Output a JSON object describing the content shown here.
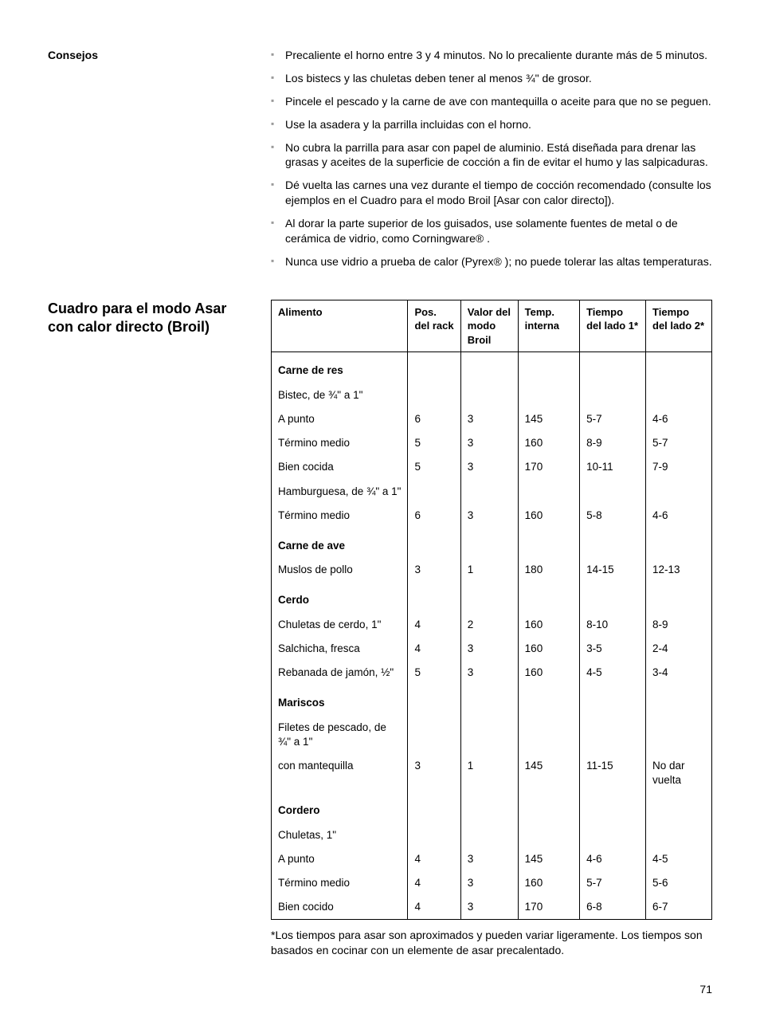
{
  "tips": {
    "label": "Consejos",
    "items": [
      "Precaliente el horno entre 3 y 4 minutos. No lo precaliente durante más de 5 minutos.",
      "Los bistecs y las chuletas deben tener al menos ¾\" de grosor.",
      "Pincele el pescado y la carne de ave con mantequilla o aceite para que no se peguen.",
      "Use la asadera y la parrilla incluidas con el horno.",
      "No cubra la parrilla para asar con papel de aluminio. Está diseñada para drenar las grasas y aceites de la superficie de cocción a fin de evitar el humo y las salpicaduras.",
      "Dé vuelta las carnes una vez durante el tiempo de cocción recomendado (consulte los ejemplos en el Cuadro para el modo Broil [Asar con calor directo]).",
      "Al dorar la parte superior de los guisados, use solamente fuentes de metal o de cerámica de vidrio, como Corningware® .",
      "Nunca use vidrio a prueba de calor (Pyrex® ); no puede tolerar las altas temperaturas."
    ]
  },
  "table": {
    "title": "Cuadro para el modo Asar con calor directo (Broil)",
    "headers": {
      "food": "Alimento",
      "pos": "Pos. del rack",
      "val": "Valor del modo Broil",
      "temp": "Temp. interna",
      "t1": "Tiempo del lado 1*",
      "t2": "Tiempo del lado 2*"
    },
    "rows": [
      {
        "type": "group",
        "food": "Carne de res"
      },
      {
        "type": "sub",
        "food": "Bistec, de ¾\" a 1\""
      },
      {
        "type": "indent",
        "food": "A punto",
        "pos": "6",
        "val": "3",
        "temp": "145",
        "t1": "5-7",
        "t2": "4-6"
      },
      {
        "type": "indent",
        "food": "Término medio",
        "pos": "5",
        "val": "3",
        "temp": "160",
        "t1": "8-9",
        "t2": "5-7"
      },
      {
        "type": "indent",
        "food": "Bien cocida",
        "pos": "5",
        "val": "3",
        "temp": "170",
        "t1": "10-11",
        "t2": "7-9"
      },
      {
        "type": "sub",
        "food": "Hamburguesa, de ¾\" a 1\""
      },
      {
        "type": "indent",
        "food": "Término medio",
        "pos": "6",
        "val": "3",
        "temp": "160",
        "t1": "5-8",
        "t2": "4-6"
      },
      {
        "type": "group",
        "food": "Carne de ave"
      },
      {
        "type": "sub",
        "food": "Muslos de pollo",
        "pos": "3",
        "val": "1",
        "temp": "180",
        "t1": "14-15",
        "t2": "12-13"
      },
      {
        "type": "group",
        "food": "Cerdo"
      },
      {
        "type": "sub",
        "food": "Chuletas de cerdo, 1\"",
        "pos": "4",
        "val": "2",
        "temp": "160",
        "t1": "8-10",
        "t2": "8-9"
      },
      {
        "type": "sub",
        "food": "Salchicha, fresca",
        "pos": "4",
        "val": "3",
        "temp": "160",
        "t1": "3-5",
        "t2": "2-4"
      },
      {
        "type": "sub",
        "food": "Rebanada de jamón, ½\"",
        "pos": "5",
        "val": "3",
        "temp": "160",
        "t1": "4-5",
        "t2": "3-4"
      },
      {
        "type": "group",
        "food": "Mariscos"
      },
      {
        "type": "sub",
        "food": "Filetes de pescado, de ¾\" a 1\""
      },
      {
        "type": "indent",
        "food": "con mantequilla",
        "pos": "3",
        "val": "1",
        "temp": "145",
        "t1": "11-15",
        "t2": "No dar vuelta"
      },
      {
        "type": "group",
        "food": "Cordero"
      },
      {
        "type": "sub",
        "food": "Chuletas, 1\""
      },
      {
        "type": "indent",
        "food": "A punto",
        "pos": "4",
        "val": "3",
        "temp": "145",
        "t1": "4-6",
        "t2": "4-5"
      },
      {
        "type": "indent",
        "food": "Término medio",
        "pos": "4",
        "val": "3",
        "temp": "160",
        "t1": "5-7",
        "t2": "5-6"
      },
      {
        "type": "indent",
        "food": "Bien cocido",
        "pos": "4",
        "val": "3",
        "temp": "170",
        "t1": "6-8",
        "t2": "6-7"
      }
    ],
    "footnote": "*Los tiempos para asar son aproximados y pueden variar ligeramente. Los tiempos son basados en cocinar con un elemente de asar precalentado."
  },
  "page_number": "71"
}
